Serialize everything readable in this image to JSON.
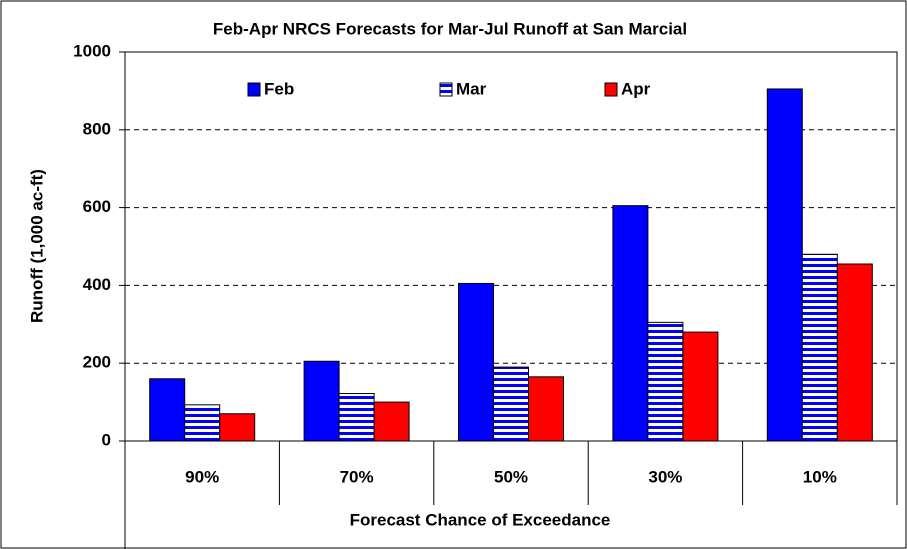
{
  "chart_data": {
    "type": "bar",
    "title": "Feb-Apr NRCS Forecasts for Mar-Jul Runoff at San Marcial",
    "x_label": "Forecast Chance of Exceedance",
    "y_label": "Runoff (1,000 ac-ft)",
    "categories": [
      "90%",
      "70%",
      "50%",
      "30%",
      "10%"
    ],
    "series": [
      {
        "name": "Feb",
        "color": "#0000ff",
        "values": [
          160,
          205,
          405,
          605,
          905
        ]
      },
      {
        "name": "Mar",
        "color": "#0000ff",
        "pattern": "horizontal-stripes",
        "values": [
          93,
          122,
          190,
          305,
          480
        ]
      },
      {
        "name": "Apr",
        "color": "#ff0000",
        "values": [
          70,
          100,
          165,
          280,
          455
        ]
      }
    ],
    "ylim": [
      0,
      1000
    ],
    "yticks": [
      0,
      200,
      400,
      600,
      800,
      1000
    ],
    "grid": true,
    "legend": "top"
  }
}
